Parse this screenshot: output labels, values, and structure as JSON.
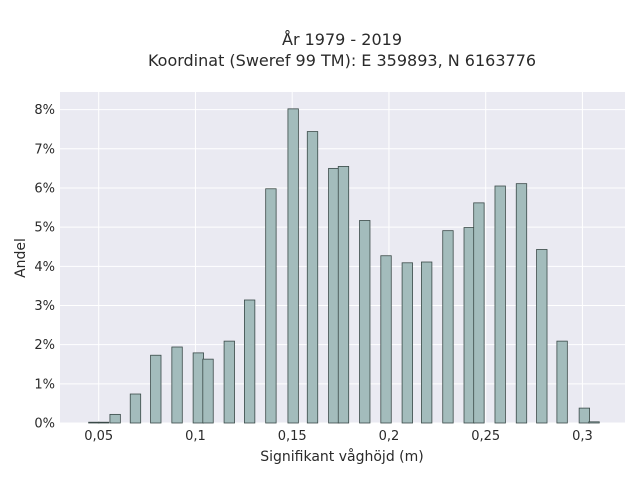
{
  "chart_data": {
    "type": "bar",
    "title_line1": "År 1979 - 2019",
    "title_line2": "Koordinat (Sweref 99 TM): E 359893, N 6163776",
    "xlabel": "Signifikant våghöjd (m)",
    "ylabel": "Andel",
    "xlim": [
      0.03,
      0.322
    ],
    "ylim": [
      0,
      0.0845
    ],
    "x_ticks": [
      {
        "value": 0.05,
        "label": "0,05"
      },
      {
        "value": 0.1,
        "label": "0,1"
      },
      {
        "value": 0.15,
        "label": "0,15"
      },
      {
        "value": 0.2,
        "label": "0,2"
      },
      {
        "value": 0.25,
        "label": "0,25"
      },
      {
        "value": 0.3,
        "label": "0,3"
      }
    ],
    "y_ticks": [
      {
        "value": 0,
        "label": "0%"
      },
      {
        "value": 0.01,
        "label": "1%"
      },
      {
        "value": 0.02,
        "label": "2%"
      },
      {
        "value": 0.03,
        "label": "3%"
      },
      {
        "value": 0.04,
        "label": "4%"
      },
      {
        "value": 0.05,
        "label": "5%"
      },
      {
        "value": 0.06,
        "label": "6%"
      },
      {
        "value": 0.07,
        "label": "7%"
      },
      {
        "value": 0.08,
        "label": "8%"
      }
    ],
    "bar_width": 0.0054,
    "x": [
      0.0475,
      0.0525,
      0.0585,
      0.069,
      0.0795,
      0.0905,
      0.1015,
      0.1065,
      0.1175,
      0.128,
      0.139,
      0.1505,
      0.1605,
      0.1715,
      0.1765,
      0.1875,
      0.1985,
      0.2095,
      0.2195,
      0.2305,
      0.2415,
      0.2465,
      0.2575,
      0.2685,
      0.279,
      0.2895,
      0.301,
      0.306
    ],
    "values": [
      0.0002,
      0.0002,
      0.0022,
      0.0074,
      0.0173,
      0.0194,
      0.0179,
      0.0163,
      0.0209,
      0.0314,
      0.0598,
      0.0802,
      0.0744,
      0.065,
      0.0655,
      0.0517,
      0.0427,
      0.0409,
      0.0411,
      0.0491,
      0.0499,
      0.0562,
      0.0605,
      0.0611,
      0.0443,
      0.0209,
      0.0038,
      0.0003
    ],
    "grid": true,
    "colors": {
      "background": "#eaeaf2",
      "bar_fill": "#a3bcbc",
      "bar_edge": "#3a4a48",
      "grid": "#ffffff"
    }
  }
}
